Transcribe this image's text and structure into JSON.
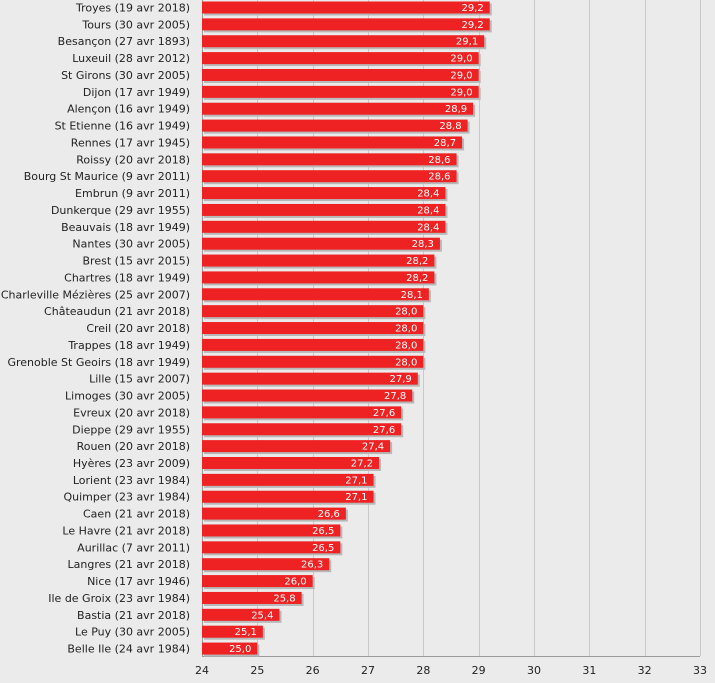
{
  "chart_data": {
    "type": "bar",
    "orientation": "horizontal",
    "categories": [
      "Troyes (19 avr 2018)",
      "Tours (30 avr 2005)",
      "Besançon (27 avr 1893)",
      "Luxeuil (28 avr 2012)",
      "St Girons (30 avr 2005)",
      "Dijon (17 avr 1949)",
      "Alençon (16 avr 1949)",
      "St Etienne (16 avr 1949)",
      "Rennes (17 avr 1945)",
      "Roissy (20 avr 2018)",
      "Bourg St Maurice (9 avr 2011)",
      "Embrun (9 avr 2011)",
      "Dunkerque (29 avr 1955)",
      "Beauvais (18 avr 1949)",
      "Nantes (30 avr 2005)",
      "Brest (15 avr 2015)",
      "Chartres (18 avr 1949)",
      "Charleville Mézières (25 avr 2007)",
      "Châteaudun (21 avr 2018)",
      "Creil (20 avr 2018)",
      "Trappes (18 avr 1949)",
      "Grenoble St Geoirs (18 avr 1949)",
      "Lille (15 avr 2007)",
      "Limoges (30 avr 2005)",
      "Evreux (20 avr 2018)",
      "Dieppe (29 avr 1955)",
      "Rouen (20 avr 2018)",
      "Hyères (23 avr 2009)",
      "Lorient (23 avr 1984)",
      "Quimper (23 avr 1984)",
      "Caen (21 avr 2018)",
      "Le Havre (21 avr 2018)",
      "Aurillac (7 avr 2011)",
      "Langres (21 avr 2018)",
      "Nice (17 avr 1946)",
      "Ile de Groix (23 avr 1984)",
      "Bastia (21 avr 2018)",
      "Le Puy (30 avr 2005)",
      "Belle Ile (24 avr 1984)"
    ],
    "values": [
      29.2,
      29.2,
      29.1,
      29.0,
      29.0,
      29.0,
      28.9,
      28.8,
      28.7,
      28.6,
      28.6,
      28.4,
      28.4,
      28.4,
      28.3,
      28.2,
      28.2,
      28.1,
      28.0,
      28.0,
      28.0,
      28.0,
      27.9,
      27.8,
      27.6,
      27.6,
      27.4,
      27.2,
      27.1,
      27.1,
      26.6,
      26.5,
      26.5,
      26.3,
      26.0,
      25.8,
      25.4,
      25.1,
      25.0
    ],
    "value_labels": [
      "29,2",
      "29,2",
      "29,1",
      "29,0",
      "29,0",
      "29,0",
      "28,9",
      "28,8",
      "28,7",
      "28,6",
      "28,6",
      "28,4",
      "28,4",
      "28,4",
      "28,3",
      "28,2",
      "28,2",
      "28,1",
      "28,0",
      "28,0",
      "28,0",
      "28,0",
      "27,9",
      "27,8",
      "27,6",
      "27,6",
      "27,4",
      "27,2",
      "27,1",
      "27,1",
      "26,6",
      "26,5",
      "26,5",
      "26,3",
      "26,0",
      "25,8",
      "25,4",
      "25,1",
      "25,0"
    ],
    "xlim": [
      24,
      33
    ],
    "xticks": [
      24,
      25,
      26,
      27,
      28,
      29,
      30,
      31,
      32,
      33
    ],
    "title": "",
    "xlabel": "",
    "ylabel": "",
    "grid": true,
    "bar_color": "#ee2222",
    "background": "#ebebeb"
  }
}
